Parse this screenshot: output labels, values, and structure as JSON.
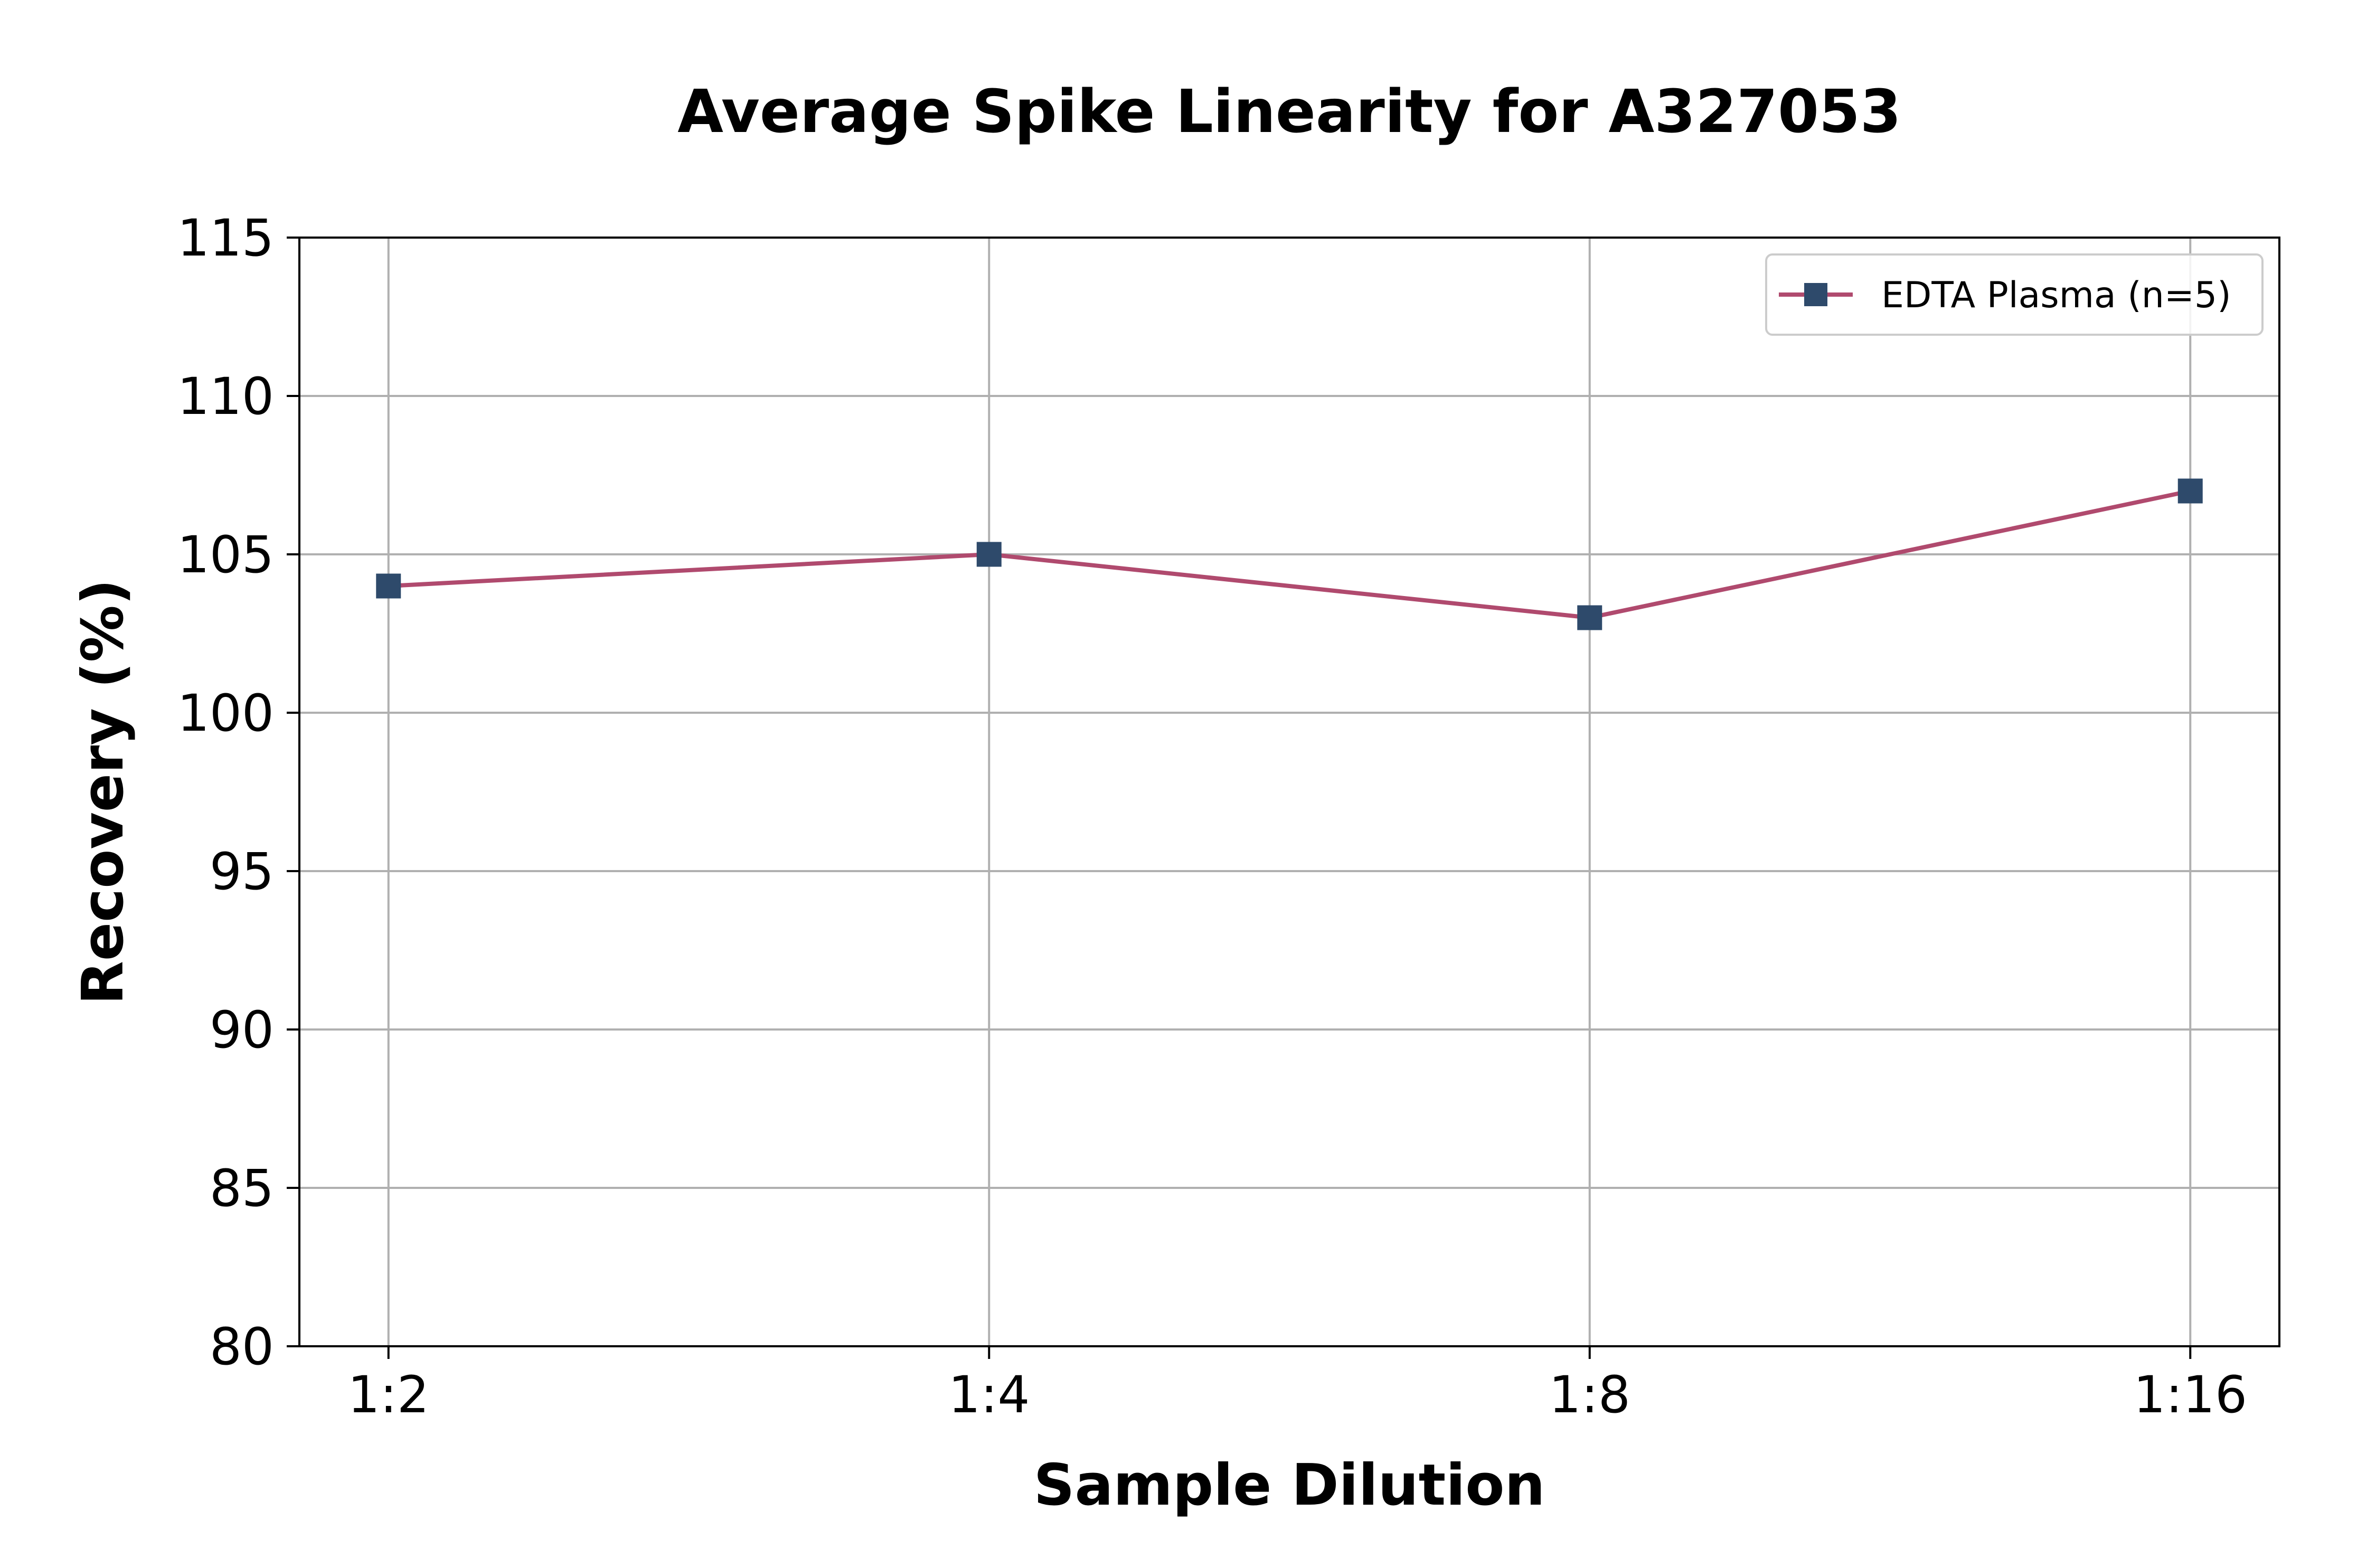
{
  "chart_data": {
    "type": "line",
    "title": "Average Spike Linearity for A327053",
    "xlabel": "Sample Dilution",
    "ylabel": "Recovery (%)",
    "categories": [
      "1:2",
      "1:4",
      "1:8",
      "1:16"
    ],
    "series": [
      {
        "name": "EDTA Plasma (n=5)",
        "values": [
          104,
          105,
          103,
          107
        ],
        "line_color": "#b04a6e",
        "marker_color": "#2e4a6b",
        "marker": "square"
      }
    ],
    "ylim": [
      80,
      115
    ],
    "yticks": [
      80,
      85,
      90,
      95,
      100,
      105,
      110,
      115
    ],
    "grid": true,
    "legend_position": "top-right"
  }
}
